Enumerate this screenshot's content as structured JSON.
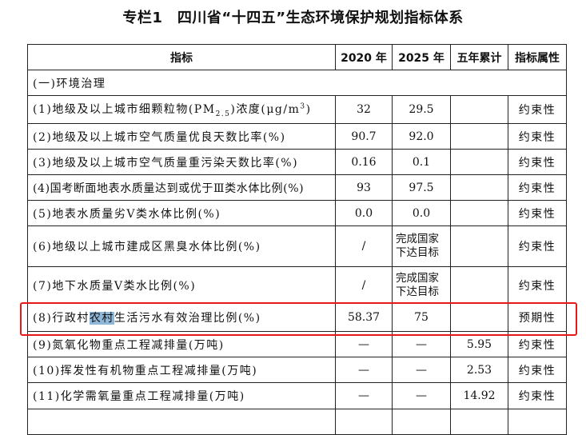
{
  "title": "专栏1　四川省“十四五”生态环境保护规划指标体系",
  "headers": [
    "指标",
    "2020 年",
    "2025 年",
    "五年累计",
    "指标属性"
  ],
  "section": "(一)环境治理",
  "rows": [
    {
      "name_pre": "(1)地级及以上城市细颗粒物(PM",
      "name_sub": "2.5",
      "name_mid": ")浓度(μg/m",
      "name_sup": "3",
      "name_post": ")",
      "y2020": "32",
      "y2025": "29.5",
      "total": "",
      "attr": "约束性"
    },
    {
      "name": "(2)地级及以上城市空气质量优良天数比率(%)",
      "y2020": "90.7",
      "y2025": "92.0",
      "total": "",
      "attr": "约束性"
    },
    {
      "name": "(3)地级及以上城市空气质量重污染天数比率(%)",
      "y2020": "0.16",
      "y2025": "0.1",
      "total": "",
      "attr": "约束性"
    },
    {
      "name": "(4)国考断面地表水质量达到或优于Ⅲ类水体比例(%)",
      "y2020": "93",
      "y2025": "97.5",
      "total": "",
      "attr": "约束性"
    },
    {
      "name": "(5)地表水质量劣Ⅴ类水体比例(%)",
      "y2020": "0.0",
      "y2025": "0.0",
      "total": "",
      "attr": "约束性"
    },
    {
      "name": "(6)地级以上城市建成区黑臭水体比例(%)",
      "y2020": "/",
      "y2025": "完成国家下达目标",
      "total": "",
      "attr": "约束性"
    },
    {
      "name": "(7)地下水质量Ⅴ类水比例(%)",
      "y2020": "/",
      "y2025": "完成国家下达目标",
      "total": "",
      "attr": "约束性"
    },
    {
      "name_pre": "(8)行政村",
      "name_hl": "农村",
      "name_post": "生活污水有效治理比例(%)",
      "y2020": "58.37",
      "y2025": "75",
      "total": "",
      "attr": "预期性"
    },
    {
      "name": "(9)氮氧化物重点工程减排量(万吨)",
      "y2020": "—",
      "y2025": "—",
      "total": "5.95",
      "attr": "约束性"
    },
    {
      "name": "(10)挥发性有机物重点工程减排量(万吨)",
      "y2020": "—",
      "y2025": "—",
      "total": "2.53",
      "attr": "约束性"
    },
    {
      "name": "(11)化学需氧量重点工程减排量(万吨)",
      "y2020": "—",
      "y2025": "—",
      "total": "14.92",
      "attr": "约束性"
    }
  ],
  "highlight_color": "#e81818"
}
